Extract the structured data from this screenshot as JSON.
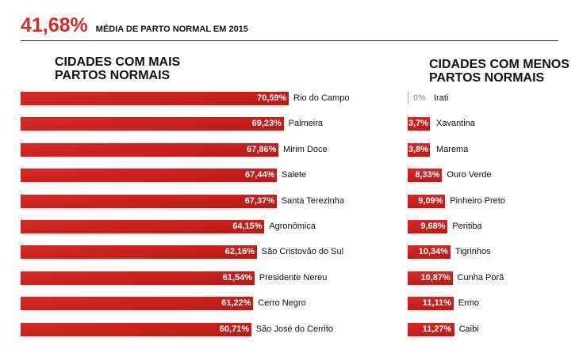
{
  "header": {
    "value": "41,68%",
    "label": "MÉDIA DE PARTO NORMAL EM 2015"
  },
  "chart_data": [
    {
      "type": "bar",
      "orientation": "horizontal",
      "title": "CIDADES COM MAIS PARTOS NORMAIS",
      "unit": "%",
      "categories": [
        "Rio do Campo",
        "Palmeira",
        "Mirim Doce",
        "Salete",
        "Santa Terezinha",
        "Agronômica",
        "São Cristovão do Sul",
        "Presidente Nereu",
        "Cerro Negro",
        "São José do Cerrito"
      ],
      "values": [
        70.59,
        69.23,
        67.86,
        67.44,
        67.37,
        64.15,
        62.16,
        61.54,
        61.22,
        60.71
      ],
      "labels": [
        "70,59%",
        "69,23%",
        "67,86%",
        "67,44%",
        "67,37%",
        "64,15%",
        "62,16%",
        "61,54%",
        "61,22%",
        "60,71%"
      ],
      "color": "#d52b25"
    },
    {
      "type": "bar",
      "orientation": "horizontal",
      "title": "CIDADES COM MENOS PARTOS NORMAIS",
      "unit": "%",
      "categories": [
        "Irati",
        "Xavantina",
        "Marema",
        "Ouro Verde",
        "Pinheiro Preto",
        "Peritiba",
        "Tigrinhos",
        "Cunha Porã",
        "Ermo",
        "Caibi"
      ],
      "values": [
        0,
        3.7,
        3.8,
        8.33,
        9.09,
        9.68,
        10.34,
        10.87,
        11.11,
        11.27
      ],
      "labels": [
        "0%",
        "3,7%",
        "3,8%",
        "8,33%",
        "9,09%",
        "9,68%",
        "10,34%",
        "10,87%",
        "11,11%",
        "11,27%"
      ],
      "color": "#d52b25"
    }
  ]
}
